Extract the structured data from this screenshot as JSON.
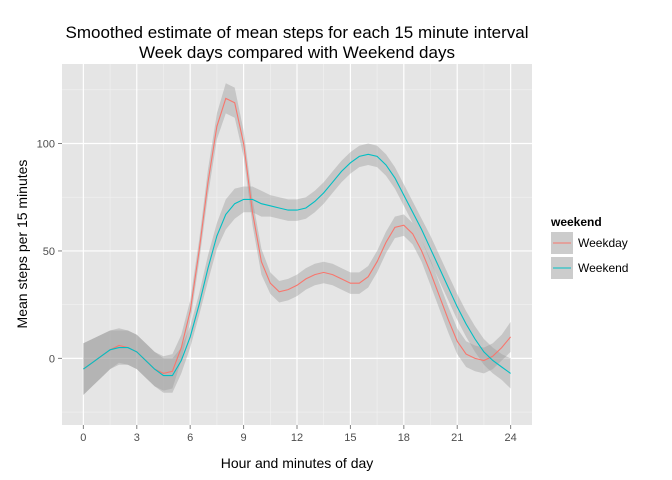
{
  "chart_data": {
    "type": "line",
    "title": "Smoothed estimate of mean steps for each 15 minute interval",
    "subtitle": "Week days compared with Weekend days",
    "xlabel": "Hour and minutes of day",
    "ylabel": "Mean steps per 15 minutes",
    "xlim": [
      -1.2,
      25.2
    ],
    "ylim": [
      -31,
      137
    ],
    "xticks": [
      0,
      3,
      6,
      9,
      12,
      15,
      18,
      21,
      24
    ],
    "yticks": [
      0,
      50,
      100
    ],
    "grid": true,
    "legend": {
      "title": "weekend",
      "position": "right"
    },
    "series": [
      {
        "name": "Weekday",
        "color": "#F8766D",
        "x": [
          0,
          0.5,
          1,
          1.5,
          2,
          2.5,
          3,
          3.5,
          4,
          4.5,
          5,
          5.5,
          6,
          6.5,
          7,
          7.5,
          8,
          8.5,
          9,
          9.5,
          10,
          10.5,
          11,
          11.5,
          12,
          12.5,
          13,
          13.5,
          14,
          14.5,
          15,
          15.5,
          16,
          16.5,
          17,
          17.5,
          18,
          18.5,
          19,
          19.5,
          20,
          20.5,
          21,
          21.5,
          22,
          22.5,
          23,
          23.5,
          24
        ],
        "y": [
          -5,
          -2,
          1,
          4,
          6,
          5,
          3,
          -1,
          -5,
          -7,
          -6,
          5,
          22,
          50,
          82,
          108,
          121,
          119,
          100,
          68,
          45,
          35,
          31,
          32,
          34,
          37,
          39,
          40,
          39,
          37,
          35,
          35,
          38,
          45,
          54,
          61,
          62,
          58,
          50,
          40,
          29,
          18,
          8,
          2,
          0,
          -1,
          1,
          5,
          10
        ],
        "band": [
          12,
          11,
          10,
          9,
          8,
          8,
          8,
          8,
          8,
          8,
          8,
          6,
          5,
          5,
          6,
          6,
          7,
          7,
          6,
          6,
          6,
          5,
          5,
          5,
          5,
          5,
          5,
          5,
          5,
          5,
          5,
          5,
          5,
          5,
          5,
          5,
          5,
          5,
          5,
          6,
          6,
          6,
          6,
          6,
          6,
          6,
          6,
          6,
          7
        ]
      },
      {
        "name": "Weekend",
        "color": "#00BFC4",
        "x": [
          0,
          0.5,
          1,
          1.5,
          2,
          2.5,
          3,
          3.5,
          4,
          4.5,
          5,
          5.5,
          6,
          6.5,
          7,
          7.5,
          8,
          8.5,
          9,
          9.5,
          10,
          10.5,
          11,
          11.5,
          12,
          12.5,
          13,
          13.5,
          14,
          14.5,
          15,
          15.5,
          16,
          16.5,
          17,
          17.5,
          18,
          18.5,
          19,
          19.5,
          20,
          20.5,
          21,
          21.5,
          22,
          22.5,
          23,
          23.5,
          24
        ],
        "y": [
          -5,
          -2,
          1,
          4,
          5,
          5,
          3,
          -1,
          -5,
          -8,
          -8,
          -1,
          10,
          25,
          42,
          57,
          67,
          72,
          74,
          74,
          72,
          71,
          70,
          69,
          69,
          70,
          73,
          77,
          82,
          87,
          91,
          94,
          95,
          94,
          90,
          84,
          76,
          68,
          60,
          51,
          42,
          33,
          24,
          16,
          9,
          3,
          -1,
          -4,
          -7
        ]
      }
    ]
  }
}
